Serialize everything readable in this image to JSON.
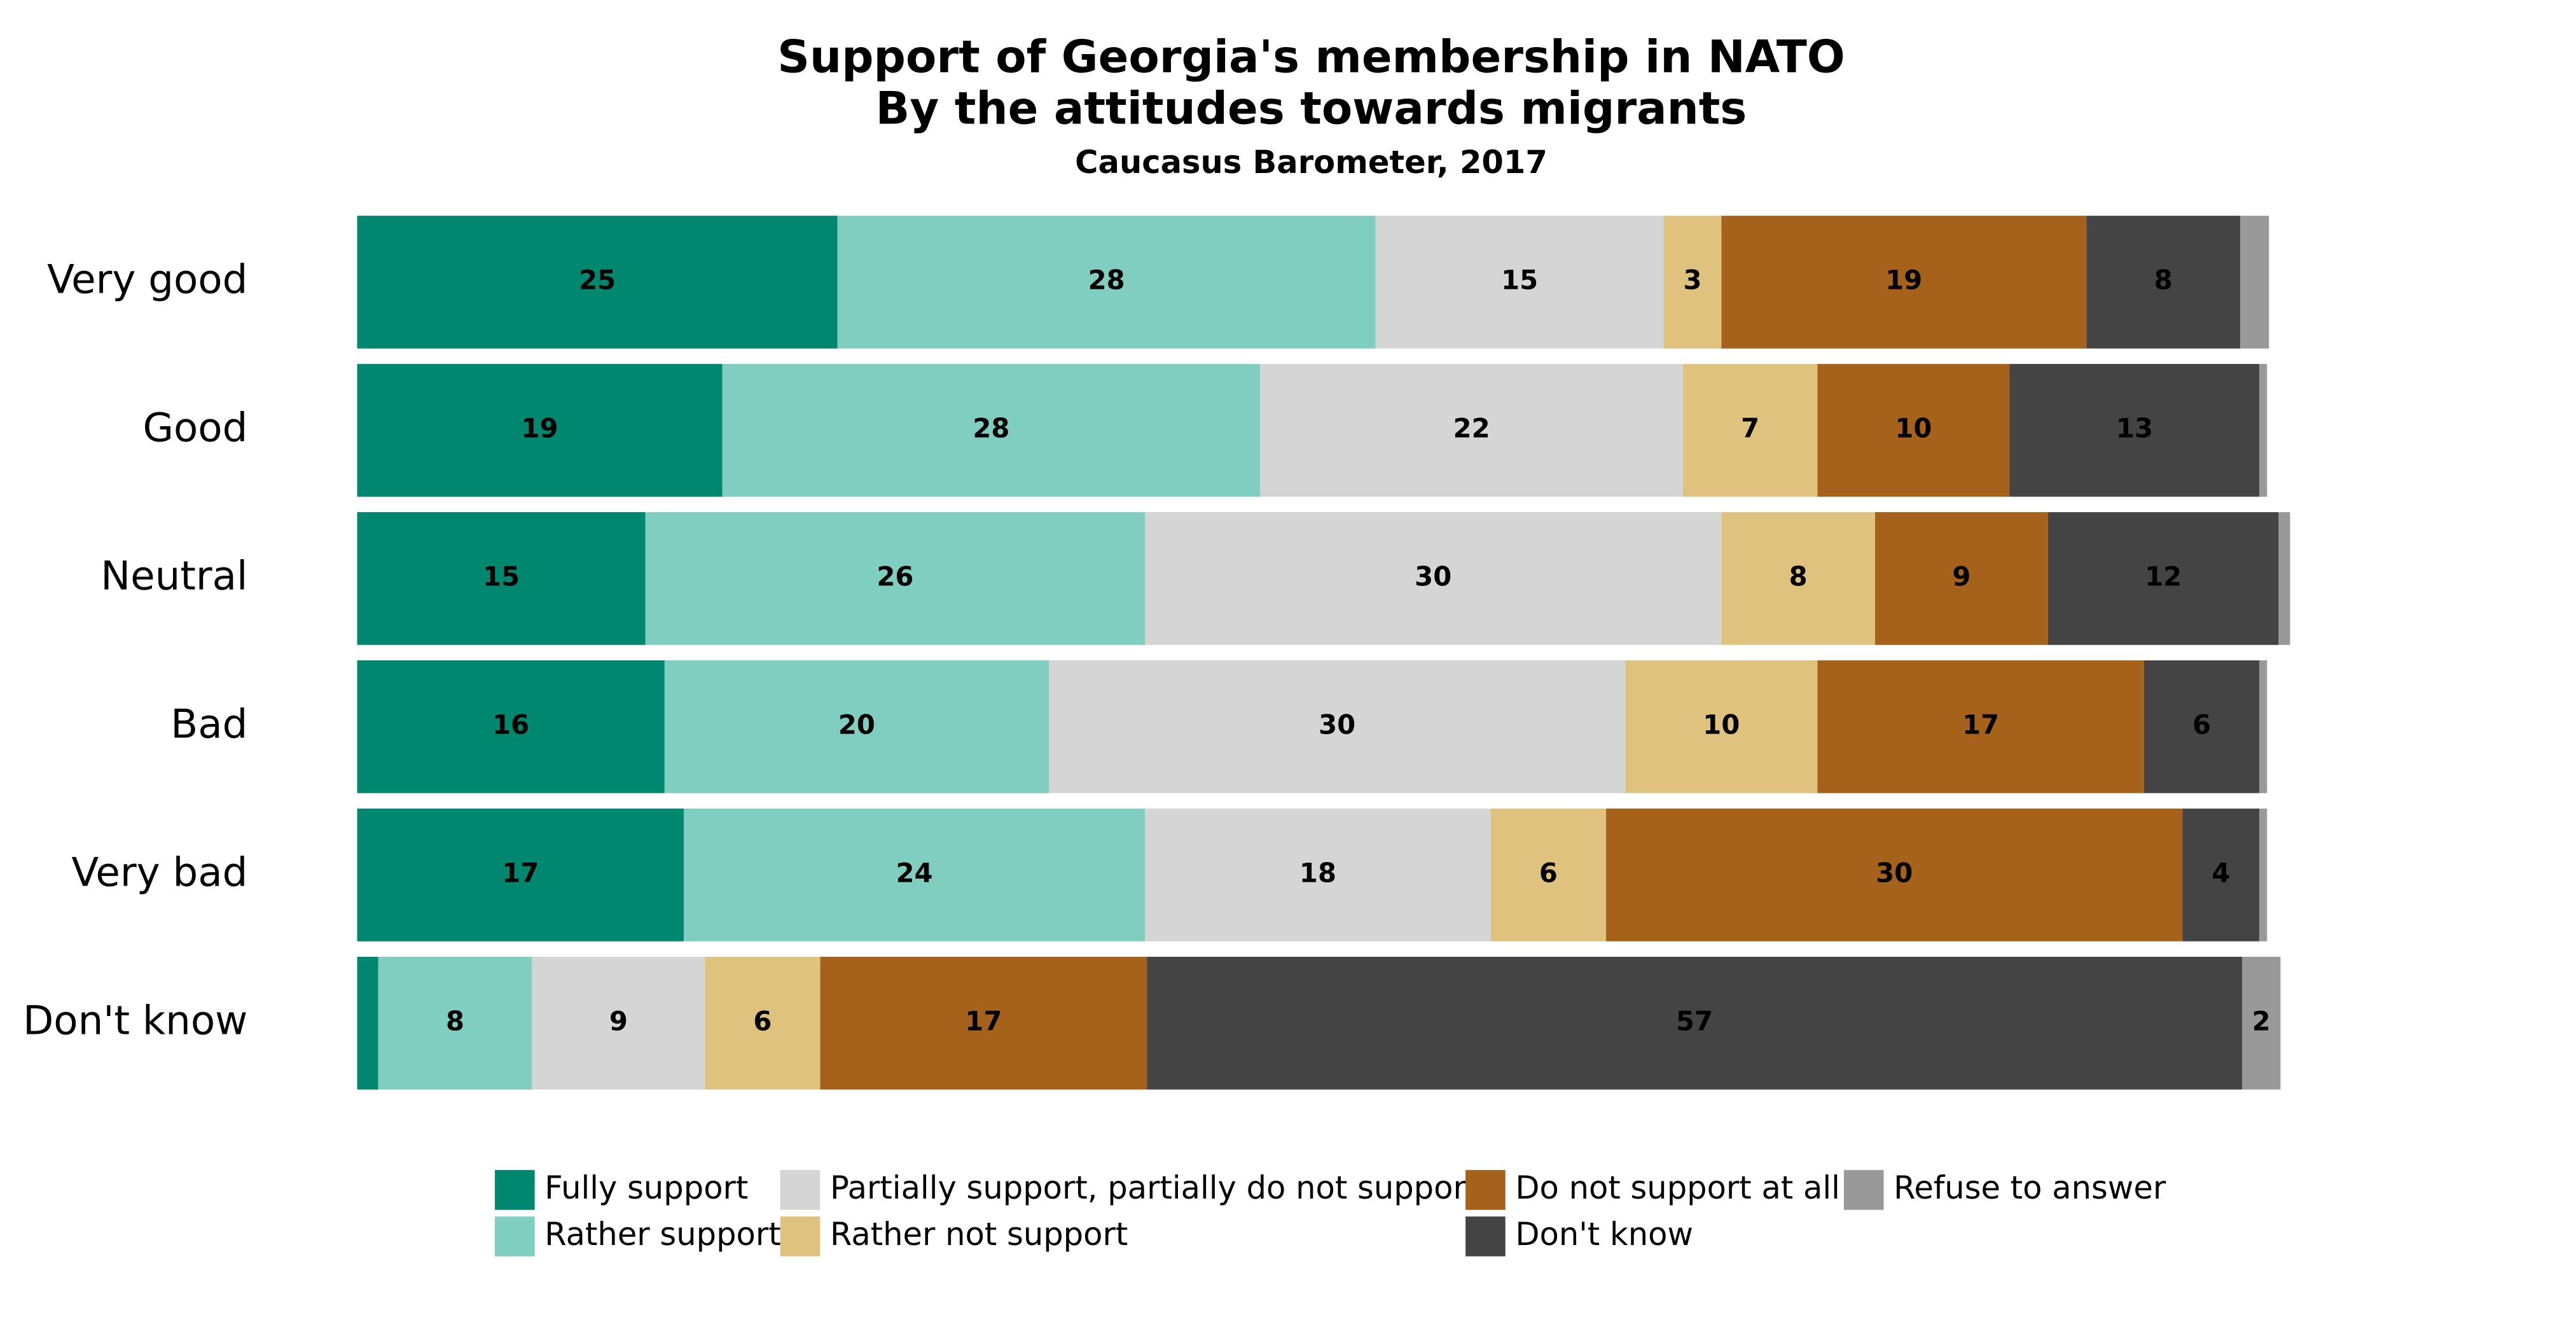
{
  "chart_data": {
    "type": "stacked-bar-horizontal",
    "title": "Support of Georgia's membership in NATO",
    "subtitle": "By the attitudes towards migrants",
    "source": "Caucasus Barometer, 2017",
    "categories": [
      "Very good",
      "Good",
      "Neutral",
      "Bad",
      "Very bad",
      "Don't know"
    ],
    "xlim": [
      0,
      100
    ],
    "legend": "bottom",
    "series": [
      {
        "name": "Fully support",
        "color": "#00876f",
        "values": [
          25,
          19,
          15,
          16,
          17,
          1.1
        ]
      },
      {
        "name": "Rather support",
        "color": "#80cec0",
        "values": [
          28,
          28,
          26,
          20,
          24,
          8
        ]
      },
      {
        "name": "Partially support, partially do not support",
        "color": "#d5d5d5",
        "values": [
          15,
          22,
          30,
          30,
          18,
          9
        ]
      },
      {
        "name": "Rather not support",
        "color": "#dfc27d",
        "values": [
          3,
          7,
          8,
          10,
          6,
          6
        ]
      },
      {
        "name": "Do not support at all",
        "color": "#a6611a",
        "values": [
          19,
          10,
          9,
          17,
          30,
          17
        ]
      },
      {
        "name": "Don't know",
        "color": "#444444",
        "values": [
          8,
          13,
          12,
          6,
          4,
          57
        ]
      },
      {
        "name": "Refuse to answer",
        "color": "#999999",
        "values": [
          1.5,
          0.4,
          0.6,
          0.4,
          0.4,
          2
        ]
      }
    ]
  }
}
